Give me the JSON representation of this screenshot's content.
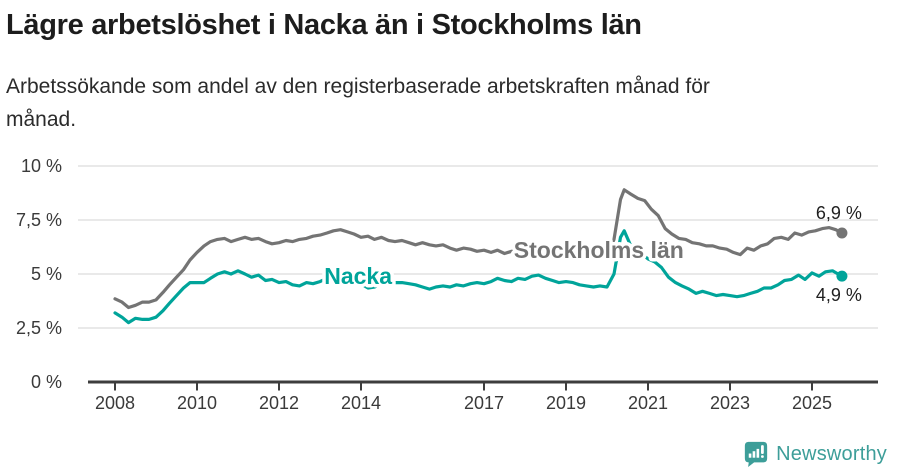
{
  "header": {
    "title": "Lägre arbetslöshet i Nacka än i Stockholms län",
    "subtitle_lines": [
      "Arbetssökande som andel av den registerbaserade arbetskraften månad för",
      "månad."
    ]
  },
  "footer": {
    "brand": "Newsworthy",
    "brand_color": "#3d9e99"
  },
  "chart_data": {
    "type": "line",
    "title": "Lägre arbetslöshet i Nacka än i Stockholms län",
    "subtitle": "Arbetssökande som andel av den registerbaserade arbetskraften månad för månad.",
    "xlabel": "",
    "ylabel": "",
    "ylim": [
      0,
      10
    ],
    "xlim": [
      2007.6,
      2026.1
    ],
    "grid": "horizontal",
    "legend_position": "inline-labels",
    "y_axis": {
      "ticks": [
        {
          "value": 10,
          "label": "10 %"
        },
        {
          "value": 7.5,
          "label": "7,5 %"
        },
        {
          "value": 5,
          "label": "5 %"
        },
        {
          "value": 2.5,
          "label": "2,5 %"
        },
        {
          "value": 0,
          "label": "0 %"
        }
      ]
    },
    "x_axis": {
      "ticks": [
        {
          "year": 2008,
          "label": "2008"
        },
        {
          "year": 2010,
          "label": "2010"
        },
        {
          "year": 2012,
          "label": "2012"
        },
        {
          "year": 2014,
          "label": "2014"
        },
        {
          "year": 2017,
          "label": "2017"
        },
        {
          "year": 2019,
          "label": "2019"
        },
        {
          "year": 2021,
          "label": "2021"
        },
        {
          "year": 2023,
          "label": "2023"
        },
        {
          "year": 2025,
          "label": "2025"
        }
      ]
    },
    "series": [
      {
        "name": "Stockholms län",
        "color": "#747474",
        "end_label": "6,9 %",
        "end_value": 6.9,
        "end_label_side": "above",
        "label_at": [
          2019.8,
          6.1
        ],
        "points": [
          [
            2008.0,
            3.85
          ],
          [
            2008.17,
            3.7
          ],
          [
            2008.33,
            3.45
          ],
          [
            2008.5,
            3.55
          ],
          [
            2008.67,
            3.7
          ],
          [
            2008.83,
            3.7
          ],
          [
            2009.0,
            3.8
          ],
          [
            2009.17,
            4.15
          ],
          [
            2009.33,
            4.5
          ],
          [
            2009.5,
            4.85
          ],
          [
            2009.67,
            5.2
          ],
          [
            2009.83,
            5.65
          ],
          [
            2010.0,
            6.0
          ],
          [
            2010.17,
            6.3
          ],
          [
            2010.33,
            6.5
          ],
          [
            2010.5,
            6.6
          ],
          [
            2010.67,
            6.65
          ],
          [
            2010.83,
            6.5
          ],
          [
            2011.0,
            6.6
          ],
          [
            2011.17,
            6.7
          ],
          [
            2011.33,
            6.6
          ],
          [
            2011.5,
            6.65
          ],
          [
            2011.67,
            6.5
          ],
          [
            2011.83,
            6.4
          ],
          [
            2012.0,
            6.45
          ],
          [
            2012.17,
            6.55
          ],
          [
            2012.33,
            6.5
          ],
          [
            2012.5,
            6.6
          ],
          [
            2012.67,
            6.65
          ],
          [
            2012.83,
            6.75
          ],
          [
            2013.0,
            6.8
          ],
          [
            2013.17,
            6.9
          ],
          [
            2013.33,
            7.0
          ],
          [
            2013.5,
            7.05
          ],
          [
            2013.67,
            6.95
          ],
          [
            2013.83,
            6.85
          ],
          [
            2014.0,
            6.7
          ],
          [
            2014.17,
            6.75
          ],
          [
            2014.33,
            6.6
          ],
          [
            2014.5,
            6.7
          ],
          [
            2014.67,
            6.55
          ],
          [
            2014.83,
            6.5
          ],
          [
            2015.0,
            6.55
          ],
          [
            2015.17,
            6.45
          ],
          [
            2015.33,
            6.35
          ],
          [
            2015.5,
            6.45
          ],
          [
            2015.67,
            6.35
          ],
          [
            2015.83,
            6.3
          ],
          [
            2016.0,
            6.35
          ],
          [
            2016.17,
            6.2
          ],
          [
            2016.33,
            6.1
          ],
          [
            2016.5,
            6.2
          ],
          [
            2016.67,
            6.15
          ],
          [
            2016.83,
            6.05
          ],
          [
            2017.0,
            6.1
          ],
          [
            2017.17,
            6.0
          ],
          [
            2017.33,
            6.1
          ],
          [
            2017.5,
            5.95
          ],
          [
            2017.67,
            6.05
          ],
          [
            2017.83,
            6.1
          ],
          [
            2018.0,
            6.0
          ],
          [
            2018.17,
            6.1
          ],
          [
            2018.33,
            5.95
          ],
          [
            2018.5,
            6.0
          ],
          [
            2018.67,
            6.1
          ],
          [
            2018.83,
            6.0
          ],
          [
            2019.0,
            5.95
          ],
          [
            2019.17,
            6.05
          ],
          [
            2019.33,
            5.9
          ],
          [
            2019.5,
            5.95
          ],
          [
            2019.67,
            5.9
          ],
          [
            2019.83,
            5.85
          ],
          [
            2020.0,
            5.9
          ],
          [
            2020.17,
            6.6
          ],
          [
            2020.33,
            8.45
          ],
          [
            2020.42,
            8.9
          ],
          [
            2020.58,
            8.7
          ],
          [
            2020.75,
            8.5
          ],
          [
            2020.92,
            8.4
          ],
          [
            2021.08,
            8.0
          ],
          [
            2021.25,
            7.7
          ],
          [
            2021.42,
            7.1
          ],
          [
            2021.58,
            6.85
          ],
          [
            2021.75,
            6.65
          ],
          [
            2021.92,
            6.6
          ],
          [
            2022.08,
            6.45
          ],
          [
            2022.25,
            6.4
          ],
          [
            2022.42,
            6.3
          ],
          [
            2022.58,
            6.3
          ],
          [
            2022.75,
            6.2
          ],
          [
            2022.92,
            6.15
          ],
          [
            2023.08,
            6.0
          ],
          [
            2023.25,
            5.9
          ],
          [
            2023.42,
            6.2
          ],
          [
            2023.58,
            6.1
          ],
          [
            2023.75,
            6.3
          ],
          [
            2023.92,
            6.4
          ],
          [
            2024.08,
            6.65
          ],
          [
            2024.25,
            6.7
          ],
          [
            2024.42,
            6.6
          ],
          [
            2024.58,
            6.9
          ],
          [
            2024.75,
            6.8
          ],
          [
            2024.92,
            6.95
          ],
          [
            2025.08,
            7.0
          ],
          [
            2025.25,
            7.1
          ],
          [
            2025.42,
            7.15
          ],
          [
            2025.58,
            7.05
          ],
          [
            2025.73,
            6.9
          ]
        ]
      },
      {
        "name": "Nacka",
        "color": "#00a49a",
        "end_label": "4,9 %",
        "end_value": 4.9,
        "end_label_side": "below",
        "label_at": [
          2013.93,
          4.9
        ],
        "points": [
          [
            2008.0,
            3.2
          ],
          [
            2008.17,
            3.0
          ],
          [
            2008.33,
            2.75
          ],
          [
            2008.5,
            2.95
          ],
          [
            2008.67,
            2.9
          ],
          [
            2008.83,
            2.9
          ],
          [
            2009.0,
            3.0
          ],
          [
            2009.17,
            3.3
          ],
          [
            2009.33,
            3.65
          ],
          [
            2009.5,
            4.0
          ],
          [
            2009.67,
            4.35
          ],
          [
            2009.83,
            4.6
          ],
          [
            2010.0,
            4.6
          ],
          [
            2010.17,
            4.6
          ],
          [
            2010.33,
            4.8
          ],
          [
            2010.5,
            5.0
          ],
          [
            2010.67,
            5.1
          ],
          [
            2010.83,
            5.0
          ],
          [
            2011.0,
            5.15
          ],
          [
            2011.17,
            5.0
          ],
          [
            2011.33,
            4.85
          ],
          [
            2011.5,
            4.95
          ],
          [
            2011.67,
            4.7
          ],
          [
            2011.83,
            4.75
          ],
          [
            2012.0,
            4.6
          ],
          [
            2012.17,
            4.65
          ],
          [
            2012.33,
            4.5
          ],
          [
            2012.5,
            4.45
          ],
          [
            2012.67,
            4.6
          ],
          [
            2012.83,
            4.55
          ],
          [
            2013.0,
            4.65
          ],
          [
            2013.17,
            4.8
          ],
          [
            2013.33,
            4.9
          ],
          [
            2013.5,
            4.95
          ],
          [
            2013.67,
            4.85
          ],
          [
            2013.83,
            4.7
          ],
          [
            2014.0,
            4.55
          ],
          [
            2014.17,
            4.35
          ],
          [
            2014.33,
            4.4
          ],
          [
            2014.5,
            4.55
          ],
          [
            2014.67,
            4.7
          ],
          [
            2014.83,
            4.6
          ],
          [
            2015.0,
            4.6
          ],
          [
            2015.17,
            4.55
          ],
          [
            2015.33,
            4.5
          ],
          [
            2015.5,
            4.4
          ],
          [
            2015.67,
            4.3
          ],
          [
            2015.83,
            4.4
          ],
          [
            2016.0,
            4.45
          ],
          [
            2016.17,
            4.4
          ],
          [
            2016.33,
            4.5
          ],
          [
            2016.5,
            4.45
          ],
          [
            2016.67,
            4.55
          ],
          [
            2016.83,
            4.6
          ],
          [
            2017.0,
            4.55
          ],
          [
            2017.17,
            4.65
          ],
          [
            2017.33,
            4.8
          ],
          [
            2017.5,
            4.7
          ],
          [
            2017.67,
            4.65
          ],
          [
            2017.83,
            4.8
          ],
          [
            2018.0,
            4.75
          ],
          [
            2018.17,
            4.9
          ],
          [
            2018.33,
            4.95
          ],
          [
            2018.5,
            4.8
          ],
          [
            2018.67,
            4.7
          ],
          [
            2018.83,
            4.6
          ],
          [
            2019.0,
            4.65
          ],
          [
            2019.17,
            4.6
          ],
          [
            2019.33,
            4.5
          ],
          [
            2019.5,
            4.45
          ],
          [
            2019.67,
            4.4
          ],
          [
            2019.83,
            4.45
          ],
          [
            2020.0,
            4.4
          ],
          [
            2020.17,
            5.0
          ],
          [
            2020.33,
            6.7
          ],
          [
            2020.42,
            7.0
          ],
          [
            2020.58,
            6.3
          ],
          [
            2020.67,
            6.35
          ],
          [
            2020.83,
            5.95
          ],
          [
            2021.0,
            5.7
          ],
          [
            2021.17,
            5.55
          ],
          [
            2021.33,
            5.3
          ],
          [
            2021.5,
            4.85
          ],
          [
            2021.67,
            4.6
          ],
          [
            2021.83,
            4.45
          ],
          [
            2022.0,
            4.3
          ],
          [
            2022.17,
            4.1
          ],
          [
            2022.33,
            4.2
          ],
          [
            2022.5,
            4.1
          ],
          [
            2022.67,
            4.0
          ],
          [
            2022.83,
            4.05
          ],
          [
            2023.0,
            4.0
          ],
          [
            2023.17,
            3.95
          ],
          [
            2023.33,
            4.0
          ],
          [
            2023.5,
            4.1
          ],
          [
            2023.67,
            4.2
          ],
          [
            2023.83,
            4.35
          ],
          [
            2024.0,
            4.35
          ],
          [
            2024.17,
            4.5
          ],
          [
            2024.33,
            4.7
          ],
          [
            2024.5,
            4.75
          ],
          [
            2024.67,
            4.95
          ],
          [
            2024.83,
            4.75
          ],
          [
            2025.0,
            5.05
          ],
          [
            2025.17,
            4.9
          ],
          [
            2025.33,
            5.1
          ],
          [
            2025.5,
            5.15
          ],
          [
            2025.73,
            4.9
          ]
        ]
      }
    ],
    "colors": {
      "grid": "#dcdcdc",
      "axis": "#3d3d3d",
      "tick_label": "#3a3a3a",
      "end_label": "#1f1f1f"
    }
  }
}
